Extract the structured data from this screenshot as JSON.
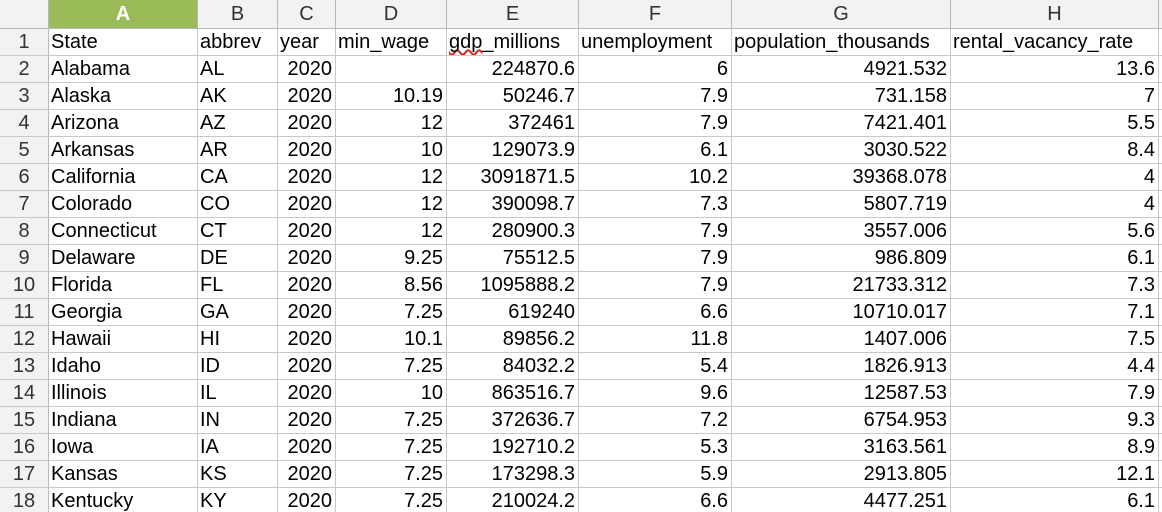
{
  "columns": [
    "A",
    "B",
    "C",
    "D",
    "E",
    "F",
    "G",
    "H"
  ],
  "selected_column": "A",
  "header_row": [
    "State",
    "abbrev",
    "year",
    "min_wage",
    "gdp_millions",
    "unemployment",
    "population_thousands",
    "rental_vacancy_rate"
  ],
  "rows": [
    [
      "Alabama",
      "AL",
      "2020",
      "",
      "224870.6",
      "6",
      "4921.532",
      "13.6"
    ],
    [
      "Alaska",
      "AK",
      "2020",
      "10.19",
      "50246.7",
      "7.9",
      "731.158",
      "7"
    ],
    [
      "Arizona",
      "AZ",
      "2020",
      "12",
      "372461",
      "7.9",
      "7421.401",
      "5.5"
    ],
    [
      "Arkansas",
      "AR",
      "2020",
      "10",
      "129073.9",
      "6.1",
      "3030.522",
      "8.4"
    ],
    [
      "California",
      "CA",
      "2020",
      "12",
      "3091871.5",
      "10.2",
      "39368.078",
      "4"
    ],
    [
      "Colorado",
      "CO",
      "2020",
      "12",
      "390098.7",
      "7.3",
      "5807.719",
      "4"
    ],
    [
      "Connecticut",
      "CT",
      "2020",
      "12",
      "280900.3",
      "7.9",
      "3557.006",
      "5.6"
    ],
    [
      "Delaware",
      "DE",
      "2020",
      "9.25",
      "75512.5",
      "7.9",
      "986.809",
      "6.1"
    ],
    [
      "Florida",
      "FL",
      "2020",
      "8.56",
      "1095888.2",
      "7.9",
      "21733.312",
      "7.3"
    ],
    [
      "Georgia",
      "GA",
      "2020",
      "7.25",
      "619240",
      "6.6",
      "10710.017",
      "7.1"
    ],
    [
      "Hawaii",
      "HI",
      "2020",
      "10.1",
      "89856.2",
      "11.8",
      "1407.006",
      "7.5"
    ],
    [
      "Idaho",
      "ID",
      "2020",
      "7.25",
      "84032.2",
      "5.4",
      "1826.913",
      "4.4"
    ],
    [
      "Illinois",
      "IL",
      "2020",
      "10",
      "863516.7",
      "9.6",
      "12587.53",
      "7.9"
    ],
    [
      "Indiana",
      "IN",
      "2020",
      "7.25",
      "372636.7",
      "7.2",
      "6754.953",
      "9.3"
    ],
    [
      "Iowa",
      "IA",
      "2020",
      "7.25",
      "192710.2",
      "5.3",
      "3163.561",
      "8.9"
    ],
    [
      "Kansas",
      "KS",
      "2020",
      "7.25",
      "173298.3",
      "5.9",
      "2913.805",
      "12.1"
    ],
    [
      "Kentucky",
      "KY",
      "2020",
      "7.25",
      "210024.2",
      "6.6",
      "4477.251",
      "6.1"
    ]
  ],
  "colors": {
    "selected_header": "#9bbb59",
    "grid": "#c8c8c8",
    "header_bg": "#f2f2f2"
  }
}
